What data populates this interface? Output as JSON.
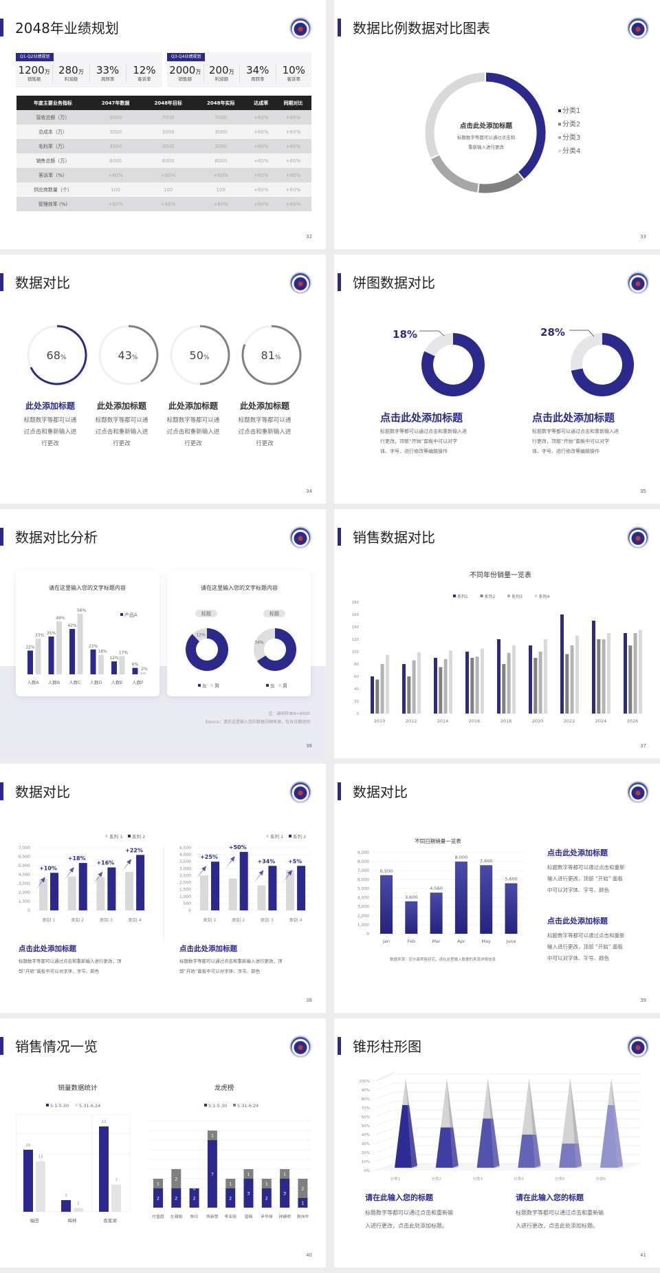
{
  "colors": {
    "navy": "#2b2a8c",
    "gray": "#808080",
    "gray2": "#b3b3b3",
    "gray3": "#d9d9d9",
    "bg": "#ececee"
  },
  "s32": {
    "page": "32",
    "title": "2048年业绩规划",
    "panels": [
      {
        "tag": "Q1-Q2业绩规划",
        "kpis": [
          {
            "v": "1200",
            "u": "万",
            "l": "销售额"
          },
          {
            "v": "280",
            "u": "万",
            "l": "利润额"
          },
          {
            "v": "33%",
            "u": "",
            "l": "周转率"
          },
          {
            "v": "12%",
            "u": "",
            "l": "客诉率"
          }
        ]
      },
      {
        "tag": "Q3-Q4业绩规划",
        "kpis": [
          {
            "v": "2000",
            "u": "万",
            "l": "销售额"
          },
          {
            "v": "200",
            "u": "万",
            "l": "利润额"
          },
          {
            "v": "34%",
            "u": "",
            "l": "周转率"
          },
          {
            "v": "10%",
            "u": "",
            "l": "客诉率"
          }
        ]
      }
    ],
    "table": {
      "headers": [
        "年度主要业务指标",
        "2047年数据",
        "2048年目标",
        "2048年实际",
        "达成率",
        "同期对比"
      ],
      "rows": [
        [
          "营收总额（万）",
          "6000",
          "7000",
          "7000",
          "+60%",
          "+60%"
        ],
        [
          "总成本（万）",
          "3000",
          "3000",
          "3000",
          "+60%",
          "+60%"
        ],
        [
          "毛利率（万）",
          "3000",
          "3000",
          "3000",
          "+60%",
          "+60%"
        ],
        [
          "销售总额（万）",
          "6000",
          "6000",
          "6000",
          "+60%",
          "+60%"
        ],
        [
          "客诉率（%）",
          "+60%",
          "+60%",
          "+60%",
          "+60%",
          "+60%"
        ],
        [
          "供应商数量（个）",
          "100",
          "100",
          "100",
          "+60%",
          "+60%"
        ],
        [
          "管理效率 (%)",
          "+60%",
          "+60%",
          "+60%",
          "+60%",
          "+60%"
        ]
      ]
    }
  },
  "s33": {
    "page": "33",
    "title": "数据比例数据对比图表",
    "center_title": "点击此处添加标题",
    "center_desc": [
      "标题数字等都可以通过点击和",
      "重新输入进行更改"
    ],
    "chart_data": {
      "type": "pie",
      "categories": [
        "分类1",
        "分类2",
        "分类3",
        "分类4"
      ],
      "values": [
        39,
        13,
        16,
        32
      ],
      "colors": [
        "#2b2a8c",
        "#808080",
        "#a6a6a6",
        "#d9d9d9"
      ],
      "legend": "right"
    }
  },
  "s34": {
    "page": "34",
    "title": "数据对比",
    "items": [
      {
        "value": 68,
        "label": "68",
        "unit": "%",
        "title": "此处添加标题",
        "desc": [
          "标题数字等都可以通",
          "过点击和重新输入进",
          "行更改"
        ],
        "color": "#2b2a8c"
      },
      {
        "value": 43,
        "label": "43",
        "unit": "%",
        "title": "此处添加标题",
        "desc": [
          "标题数字等都可以通",
          "过点击和重新输入进",
          "行更改"
        ],
        "color": "#808080"
      },
      {
        "value": 50,
        "label": "50",
        "unit": "%",
        "title": "此处添加标题",
        "desc": [
          "标题数字等都可以通",
          "过点击和重新输入进",
          "行更改"
        ],
        "color": "#808080"
      },
      {
        "value": 81,
        "label": "81",
        "unit": "%",
        "title": "此处添加标题",
        "desc": [
          "标题数字等都可以通",
          "过点击和重新输入进",
          "行更改"
        ],
        "color": "#808080"
      }
    ]
  },
  "s35": {
    "page": "35",
    "title": "饼图数据对比",
    "items": [
      {
        "value": 18,
        "label": "18%",
        "title": "点击此处添加标题",
        "desc": [
          "标题数字等都可以通过点击和重新输入进",
          "行更改，顶部“开始”面板中可以对字",
          "体、字号、进行修改等编辑操作"
        ]
      },
      {
        "value": 28,
        "label": "28%",
        "title": "点击此处添加标题",
        "desc": [
          "标题数字等都可以通过点击和重新输入进",
          "行更改，顶部“开始”面板中可以对字",
          "体、字号、进行修改等编辑操作"
        ]
      }
    ]
  },
  "s36": {
    "page": "36",
    "title": "数据对比分析",
    "card1_title": "请在这里输入您的文字标题内容",
    "card2_title": "请在这里输入您的文字标题内容",
    "chart_data": [
      {
        "type": "bar",
        "categories": [
          "人群A",
          "人群B",
          "人群C",
          "人群D",
          "人群E",
          "人群F"
        ],
        "series": [
          {
            "name": "产品A",
            "values": [
              22,
              35,
              42,
              23,
              12,
              6
            ],
            "color": "#2b2a8c"
          },
          {
            "values": [
              33,
              49,
              56,
              18,
              17,
              2
            ],
            "color": "#d9d9d9"
          }
        ],
        "labels_suffix": "%"
      },
      {
        "type": "pie",
        "title": "标题",
        "categories": [
          "女",
          "男"
        ],
        "values": [
          88,
          12
        ],
        "shown_label": "12%"
      },
      {
        "type": "pie",
        "title": "标题",
        "categories": [
          "女",
          "男"
        ],
        "values": [
          66,
          34
        ],
        "shown_label": "34%"
      }
    ],
    "note": "注：调研样本N=9000",
    "source": "Source：请在这里输入您的数据详细来源，包含日期时间"
  },
  "s37": {
    "page": "37",
    "title": "销售数据对比",
    "chart_data": {
      "type": "bar",
      "title": "不同年份销量一览表",
      "categories": [
        "2010",
        "2012",
        "2014",
        "2016",
        "2018",
        "2020",
        "2022",
        "2024",
        "2026"
      ],
      "ylim": [
        0,
        180
      ],
      "yticks": [
        0,
        20,
        40,
        60,
        80,
        100,
        120,
        140,
        160,
        180
      ],
      "legend": "top",
      "series": [
        {
          "name": "系列1",
          "values": [
            60,
            80,
            90,
            100,
            120,
            110,
            160,
            150,
            130
          ],
          "color": "#2b2a8c"
        },
        {
          "name": "系列2",
          "values": [
            55,
            60,
            75,
            90,
            80,
            90,
            96,
            120,
            110
          ],
          "color": "#808080"
        },
        {
          "name": "系列3",
          "values": [
            80,
            86,
            88,
            92,
            98,
            100,
            110,
            120,
            130
          ],
          "color": "#b3b3b3"
        },
        {
          "name": "系列4",
          "values": [
            95,
            99,
            102,
            105,
            110,
            120,
            126,
            130,
            135
          ],
          "color": "#d9d9d9"
        }
      ]
    }
  },
  "s38": {
    "page": "38",
    "title": "数据对比",
    "chart_data": [
      {
        "type": "bar",
        "categories": [
          "类别 1",
          "类别 2",
          "类别 3",
          "类别 4"
        ],
        "ylim": [
          0,
          7000
        ],
        "yticks": [
          "0",
          "1,000",
          "2,000",
          "3,000",
          "4,000",
          "5,000",
          "6,000",
          "7,000"
        ],
        "series": [
          {
            "name": "系列 1",
            "values": [
              3500,
              3800,
              3700,
              4300
            ],
            "color": "#d9d9d9"
          },
          {
            "name": "系列 2",
            "values": [
              4200,
              5300,
              4800,
              6200
            ],
            "color": "#2b2a8c"
          }
        ],
        "growth": [
          "+10%",
          "+18%",
          "+16%",
          "+22%"
        ]
      },
      {
        "type": "bar",
        "categories": [
          "类别 1",
          "类别 2",
          "类别 3",
          "类别 4"
        ],
        "ylim": [
          0,
          4500
        ],
        "yticks": [
          "0",
          "500",
          "1,000",
          "1,500",
          "2,000",
          "2,500",
          "3,000",
          "3,500",
          "4,000",
          "4,500"
        ],
        "series": [
          {
            "name": "系列 1",
            "values": [
              2500,
              2300,
              1800,
              2900
            ],
            "color": "#d9d9d9"
          },
          {
            "name": "系列 2",
            "values": [
              3500,
              4200,
              3200,
              3200
            ],
            "color": "#2b2a8c"
          }
        ],
        "growth": [
          "+25%",
          "+50%",
          "+34%",
          "+5%"
        ]
      }
    ],
    "texts": [
      {
        "title": "点击此处添加标题",
        "desc": [
          "标题数字等都可以通过点击和重新输入进行更改，顶",
          "部“开始”面板中可以对字体、字号、颜色"
        ]
      },
      {
        "title": "点击此处添加标题",
        "desc": [
          "标题数字等都可以通过点击和重新输入进行更改，顶",
          "部“开始”面板中可以对字体、字号、颜色"
        ]
      }
    ]
  },
  "s39": {
    "page": "39",
    "title": "数据对比",
    "chart_data": {
      "type": "bar",
      "title": "不同日期销量一览表",
      "categories": [
        "Jan",
        "Feb",
        "Mar",
        "Apr",
        "May",
        "June"
      ],
      "values": [
        6500,
        3600,
        4560,
        8000,
        7600,
        5600
      ],
      "labels": [
        "6,500",
        "3,600",
        "4,560",
        "8,000",
        "7,600",
        "5,600"
      ],
      "ylim": [
        0,
        9000
      ],
      "yticks": [
        "0",
        "1,000",
        "2,000",
        "3,000",
        "4,000",
        "5,000",
        "6,000",
        "7,000",
        "8,000",
        "9,000"
      ]
    },
    "source": "数据来源：尼尔森零售研究，请在这里输入数据的来源详情信息",
    "texts": [
      {
        "title": "点击此处添加标题",
        "desc": [
          "标题数字等都可以通过点击和重新",
          "输入进行更改，顶部 “开始” 面板",
          "中可以对字体、字号、颜色"
        ]
      },
      {
        "title": "点击此处添加标题",
        "desc": [
          "标题数字等都可以通过点击和重新",
          "输入进行更改，顶部 “开始” 面板",
          "中可以对字体、字号、颜色"
        ]
      }
    ]
  },
  "s40": {
    "page": "40",
    "title": "销售情况一览",
    "chart_data": [
      {
        "type": "bar",
        "title": "销量数据统计",
        "categories": [
          "福田",
          "梅林",
          "香蜜湖"
        ],
        "series": [
          {
            "name": "5.1-5.30",
            "values": [
              16,
              3,
              22
            ],
            "color": "#2b2a8c"
          },
          {
            "name": "5.31-6.24",
            "values": [
              13,
              1,
              7
            ],
            "color": "#e3e3e3"
          }
        ]
      },
      {
        "type": "stacked-bar",
        "title": "龙虎榜",
        "categories": [
          "付直超",
          "左湘阁",
          "陈玲",
          "陈新慧",
          "李亚丽",
          "曾梅",
          "尹华禄",
          "钟建明",
          "周伟华"
        ],
        "series": [
          {
            "name": "5.1-5.30",
            "values": [
              2,
              2,
              2,
              7,
              2,
              3,
              2,
              3,
              1
            ],
            "color": "#2b2a8c"
          },
          {
            "name": "5.31-6.24",
            "values": [
              1,
              2,
              0,
              1,
              1,
              1,
              1,
              1,
              2
            ],
            "color": "#808080"
          }
        ]
      }
    ]
  },
  "s41": {
    "page": "41",
    "title": "锥形柱形图",
    "chart_data": {
      "type": "bar",
      "subtype": "3d-cone",
      "categories": [
        "分类1",
        "分类2",
        "分类3",
        "分类4",
        "分类5",
        "分类6"
      ],
      "values": [
        70,
        45,
        55,
        37,
        27,
        70
      ],
      "ylim": [
        0,
        100
      ],
      "yticks": [
        "0%",
        "10%",
        "20%",
        "30%",
        "40%",
        "50%",
        "60%",
        "70%",
        "80%",
        "90%",
        "100%"
      ],
      "colors": [
        "#2e2d96",
        "#3f3ea3",
        "#5353ad",
        "#6464b6",
        "#7a7ac2",
        "#9393cf"
      ]
    },
    "texts": [
      {
        "title": "请在此输入您的标题",
        "desc": [
          "标题数字等都可以通过点击和重新输",
          "入进行更改，点击此处添加标题。"
        ]
      },
      {
        "title": "请在此输入您的标题",
        "desc": [
          "标题数字等都可以通过点击和重新输",
          "入进行更改，点击此处添加标题。"
        ]
      }
    ]
  }
}
